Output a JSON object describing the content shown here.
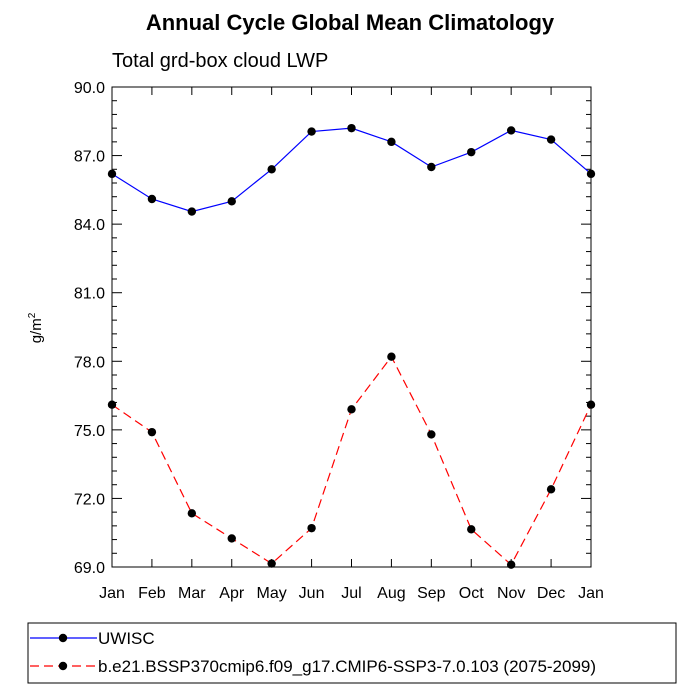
{
  "chart_data": {
    "type": "line",
    "title": "Annual Cycle Global Mean Climatology",
    "subtitle": "Total grd-box cloud LWP",
    "ylabel": "g/m",
    "ylabel_superscript": "2",
    "categories": [
      "Jan",
      "Feb",
      "Mar",
      "Apr",
      "May",
      "Jun",
      "Jul",
      "Aug",
      "Sep",
      "Oct",
      "Nov",
      "Dec",
      "Jan"
    ],
    "ylim": [
      69.0,
      90.0
    ],
    "yticks": [
      "69.0",
      "72.0",
      "75.0",
      "78.0",
      "81.0",
      "84.0",
      "87.0",
      "90.0"
    ],
    "grid": false,
    "legend_position": "bottom",
    "series": [
      {
        "name": "UWISC",
        "color": "#0000ff",
        "line_style": "solid",
        "values": [
          86.2,
          85.1,
          84.55,
          85.0,
          86.4,
          88.05,
          88.2,
          87.6,
          86.5,
          87.15,
          88.1,
          87.7,
          86.2
        ]
      },
      {
        "name": "b.e21.BSSP370cmip6.f09_g17.CMIP6-SSP3-7.0.103 (2075-2099)",
        "color": "#ff0000",
        "line_style": "dashed",
        "values": [
          76.1,
          74.9,
          71.35,
          70.25,
          69.15,
          70.7,
          75.9,
          78.2,
          74.8,
          70.65,
          69.1,
          72.4,
          76.1
        ]
      }
    ]
  }
}
